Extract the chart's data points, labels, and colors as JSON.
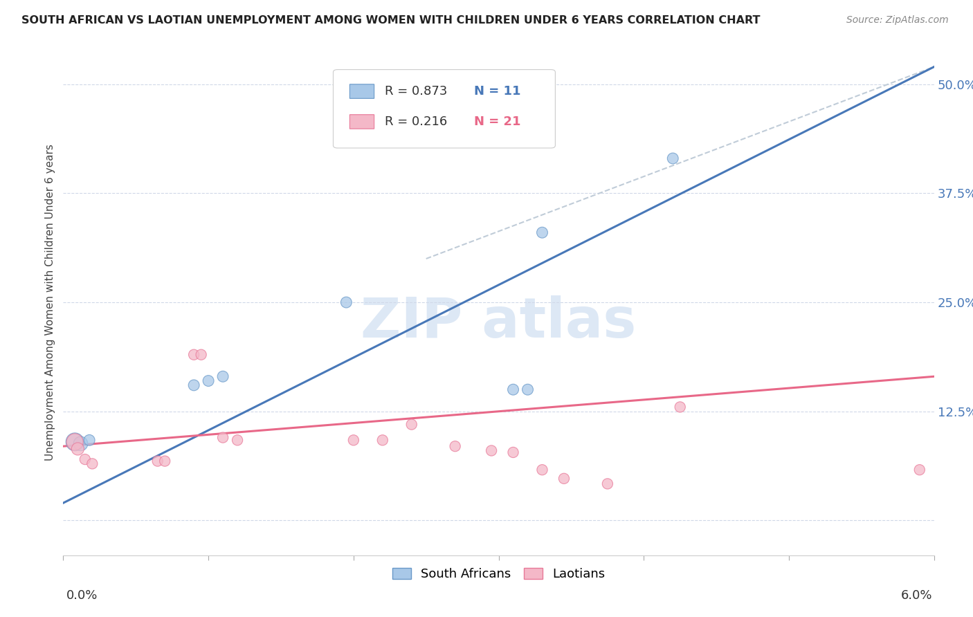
{
  "title": "SOUTH AFRICAN VS LAOTIAN UNEMPLOYMENT AMONG WOMEN WITH CHILDREN UNDER 6 YEARS CORRELATION CHART",
  "source": "Source: ZipAtlas.com",
  "ylabel": "Unemployment Among Women with Children Under 6 years",
  "yticks": [
    0.0,
    0.125,
    0.25,
    0.375,
    0.5
  ],
  "ytick_labels": [
    "",
    "12.5%",
    "25.0%",
    "37.5%",
    "50.0%"
  ],
  "xlim": [
    0.0,
    0.06
  ],
  "ylim": [
    -0.04,
    0.54
  ],
  "r_blue": "R = 0.873",
  "n_blue": "N = 11",
  "r_pink": "R = 0.216",
  "n_pink": "N = 21",
  "legend_label_blue": "South Africans",
  "legend_label_pink": "Laotians",
  "blue_color": "#a8c8e8",
  "pink_color": "#f4b8c8",
  "blue_edge_color": "#6898c8",
  "pink_edge_color": "#e87898",
  "blue_line_color": "#4878b8",
  "pink_line_color": "#e86888",
  "ref_line_color": "#c0ccd8",
  "scatter_blue": [
    [
      0.0008,
      0.09
    ],
    [
      0.0012,
      0.088
    ],
    [
      0.0018,
      0.092
    ],
    [
      0.009,
      0.155
    ],
    [
      0.01,
      0.16
    ],
    [
      0.011,
      0.165
    ],
    [
      0.0195,
      0.25
    ],
    [
      0.031,
      0.15
    ],
    [
      0.032,
      0.15
    ],
    [
      0.033,
      0.33
    ],
    [
      0.042,
      0.415
    ]
  ],
  "scatter_pink": [
    [
      0.0008,
      0.09
    ],
    [
      0.001,
      0.082
    ],
    [
      0.0015,
      0.07
    ],
    [
      0.002,
      0.065
    ],
    [
      0.0065,
      0.068
    ],
    [
      0.007,
      0.068
    ],
    [
      0.009,
      0.19
    ],
    [
      0.0095,
      0.19
    ],
    [
      0.011,
      0.095
    ],
    [
      0.012,
      0.092
    ],
    [
      0.02,
      0.092
    ],
    [
      0.022,
      0.092
    ],
    [
      0.024,
      0.11
    ],
    [
      0.027,
      0.085
    ],
    [
      0.0295,
      0.08
    ],
    [
      0.031,
      0.078
    ],
    [
      0.033,
      0.058
    ],
    [
      0.0345,
      0.048
    ],
    [
      0.0375,
      0.042
    ],
    [
      0.0425,
      0.13
    ],
    [
      0.059,
      0.058
    ]
  ],
  "blue_sizes": [
    350,
    220,
    130,
    130,
    130,
    130,
    130,
    130,
    130,
    130,
    130
  ],
  "pink_sizes": [
    300,
    170,
    120,
    120,
    120,
    120,
    120,
    120,
    120,
    120,
    120,
    120,
    120,
    120,
    120,
    120,
    120,
    120,
    120,
    120,
    120
  ],
  "blue_line_x": [
    0.0,
    0.06
  ],
  "blue_line_y": [
    0.02,
    0.52
  ],
  "pink_line_x": [
    0.0,
    0.06
  ],
  "pink_line_y": [
    0.085,
    0.165
  ],
  "ref_line_x": [
    0.025,
    0.06
  ],
  "ref_line_y": [
    0.3,
    0.52
  ],
  "watermark_text": "ZIP atlas",
  "watermark_color": "#dde8f5"
}
